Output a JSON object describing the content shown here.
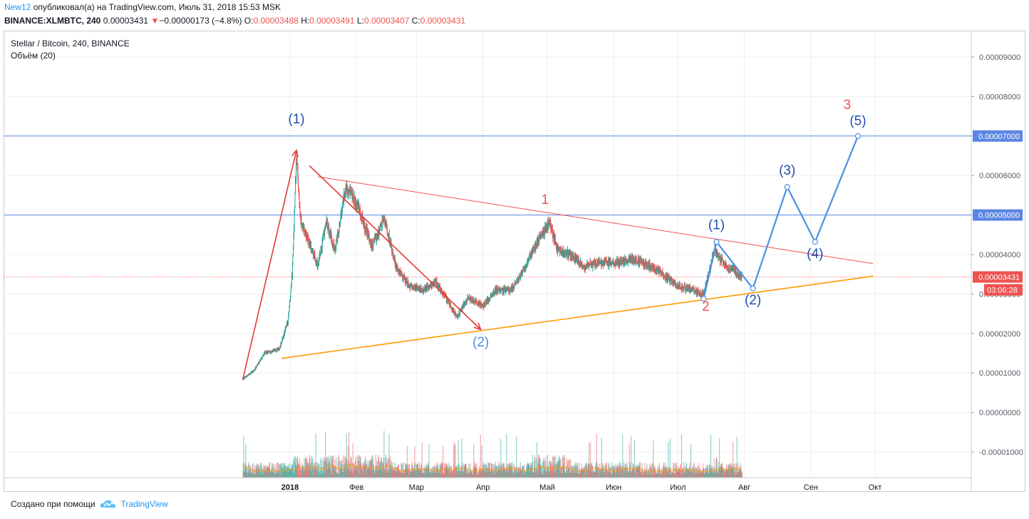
{
  "header": {
    "author": "New12",
    "published_text": "опубликовал(а) на TradingView.com, Июль 31, 2018 15:53 MSK",
    "symbol": "BINANCE:XLMBTC, 240",
    "last": "0.00003431",
    "change": "−0.00000173 (−4.8%)",
    "o_label": "O:",
    "o_value": "0.00003488",
    "h_label": "H:",
    "h_value": "0.00003491",
    "l_label": "L:",
    "l_value": "0.00003407",
    "c_label": "C:",
    "c_value": "0.00003431"
  },
  "legend": {
    "title": "Stellar / Bitcoin, 240, BINANCE",
    "volume": "Объём (20)"
  },
  "footer": {
    "created_with": "Создано при помощи",
    "brand": "TradingView"
  },
  "colors": {
    "up": "#26a69a",
    "down": "#ef5350",
    "red_line": "#ef5350",
    "orange_line": "#ff9800",
    "blue_hline": "#5b86e5",
    "blue_path": "#4a90e2",
    "arrow_red": "#e53935",
    "label_blue": "#1e4fb0"
  },
  "chart_data": {
    "type": "candlestick",
    "title": "Stellar / Bitcoin, 240, BINANCE",
    "y_axis": {
      "min": -1.8e-06,
      "max": 9.8e-06,
      "ticks": [
        "0.00009000",
        "0.00008000",
        "0.00007000",
        "0.00006000",
        "0.00005000",
        "0.00004000",
        "0.00003000",
        "0.00002000",
        "0.00001000",
        "0.00000000",
        "-0.00001000"
      ],
      "tick_values": [
        9e-05,
        8e-05,
        7e-05,
        6e-05,
        5e-05,
        4e-05,
        3e-05,
        2e-05,
        1e-05,
        0,
        -1e-05
      ]
    },
    "x_axis": {
      "labels": [
        "2018",
        "Фев",
        "Мар",
        "Апр",
        "Май",
        "Июн",
        "Июл",
        "Авг",
        "Сен",
        "Окт"
      ],
      "dates": [
        "2018-01-01",
        "2018-02-01",
        "2018-03-01",
        "2018-04-01",
        "2018-05-01",
        "2018-06-01",
        "2018-07-01",
        "2018-08-01",
        "2018-09-01",
        "2018-10-01"
      ]
    },
    "price_path": [
      [
        "2017-12-10",
        8.5e-06
      ],
      [
        "2017-12-15",
        1.05e-05
      ],
      [
        "2017-12-20",
        1.5e-05
      ],
      [
        "2017-12-27",
        1.6e-05
      ],
      [
        "2017-12-31",
        2.3e-05
      ],
      [
        "2018-01-02",
        3.5e-05
      ],
      [
        "2018-01-04",
        6.5e-05
      ],
      [
        "2018-01-06",
        4.8e-05
      ],
      [
        "2018-01-10",
        4.3e-05
      ],
      [
        "2018-01-14",
        3.7e-05
      ],
      [
        "2018-01-18",
        4.8e-05
      ],
      [
        "2018-01-22",
        4.1e-05
      ],
      [
        "2018-01-27",
        5.7e-05
      ],
      [
        "2018-02-02",
        5.2e-05
      ],
      [
        "2018-02-08",
        4.2e-05
      ],
      [
        "2018-02-14",
        4.9e-05
      ],
      [
        "2018-02-20",
        3.6e-05
      ],
      [
        "2018-02-26",
        3.2e-05
      ],
      [
        "2018-03-04",
        3.1e-05
      ],
      [
        "2018-03-10",
        3.3e-05
      ],
      [
        "2018-03-16",
        2.8e-05
      ],
      [
        "2018-03-20",
        2.4e-05
      ],
      [
        "2018-03-25",
        2.9e-05
      ],
      [
        "2018-04-01",
        2.7e-05
      ],
      [
        "2018-04-07",
        3.1e-05
      ],
      [
        "2018-04-14",
        3.1e-05
      ],
      [
        "2018-04-20",
        3.6e-05
      ],
      [
        "2018-04-26",
        4.3e-05
      ],
      [
        "2018-05-02",
        4.8e-05
      ],
      [
        "2018-05-06",
        4.1e-05
      ],
      [
        "2018-05-12",
        4e-05
      ],
      [
        "2018-05-18",
        3.7e-05
      ],
      [
        "2018-05-26",
        3.8e-05
      ],
      [
        "2018-06-02",
        3.8e-05
      ],
      [
        "2018-06-10",
        3.9e-05
      ],
      [
        "2018-06-18",
        3.7e-05
      ],
      [
        "2018-06-24",
        3.5e-05
      ],
      [
        "2018-07-01",
        3.2e-05
      ],
      [
        "2018-07-08",
        3.1e-05
      ],
      [
        "2018-07-13",
        3e-05
      ],
      [
        "2018-07-18",
        4.1e-05
      ],
      [
        "2018-07-22",
        3.8e-05
      ],
      [
        "2018-07-27",
        3.6e-05
      ],
      [
        "2018-07-31",
        3.43e-05
      ]
    ],
    "last_price": "0.00003431",
    "countdown": "03:06:28",
    "horizontal_levels": [
      {
        "value": 7e-05,
        "label": "0.00007000"
      },
      {
        "value": 5e-05,
        "label": "0.00005000"
      }
    ],
    "trendlines": [
      {
        "name": "red",
        "from": [
          "2018-01-14",
          5.97e-05
        ],
        "to": [
          "2018-09-30",
          3.77e-05
        ]
      },
      {
        "name": "orange",
        "from": [
          "2017-12-28",
          1.37e-05
        ],
        "to": [
          "2018-09-30",
          3.45e-05
        ]
      }
    ],
    "red_arrows": [
      {
        "from": [
          "2017-12-10",
          8.5e-06
        ],
        "to": [
          "2018-01-04",
          6.64e-05
        ]
      },
      {
        "from": [
          "2018-01-10",
          6.25e-05
        ],
        "to": [
          "2018-03-31",
          2.1e-05
        ]
      }
    ],
    "wave_path": [
      [
        "2018-07-13",
        2.88e-05
      ],
      [
        "2018-07-19",
        4.32e-05
      ],
      [
        "2018-08-05",
        3.14e-05
      ],
      [
        "2018-08-21",
        5.71e-05
      ],
      [
        "2018-09-03",
        4.32e-05
      ],
      [
        "2018-09-23",
        7e-05
      ]
    ],
    "annotations": [
      {
        "text": "(1)",
        "at": [
          "2018-01-04",
          7.32e-05
        ],
        "color": "label_blue"
      },
      {
        "text": "(2)",
        "at": [
          "2018-03-31",
          1.67e-05
        ],
        "color": "blue_path"
      },
      {
        "text": "1",
        "at": [
          "2018-04-30",
          5.28e-05
        ],
        "color": "red_line"
      },
      {
        "text": "2",
        "at": [
          "2018-07-14",
          2.57e-05
        ],
        "color": "red_line"
      },
      {
        "text": "(1)",
        "at": [
          "2018-07-19",
          4.64e-05
        ],
        "color": "label_blue"
      },
      {
        "text": "(2)",
        "at": [
          "2018-08-05",
          2.74e-05
        ],
        "color": "label_blue"
      },
      {
        "text": "(3)",
        "at": [
          "2018-08-21",
          6.02e-05
        ],
        "color": "label_blue"
      },
      {
        "text": "(4)",
        "at": [
          "2018-09-03",
          3.91e-05
        ],
        "color": "label_blue"
      },
      {
        "text": "(5)",
        "at": [
          "2018-09-23",
          7.28e-05
        ],
        "color": "label_blue"
      },
      {
        "text": "3",
        "at": [
          "2018-09-18",
          7.68e-05
        ],
        "color": "red_line"
      }
    ]
  }
}
